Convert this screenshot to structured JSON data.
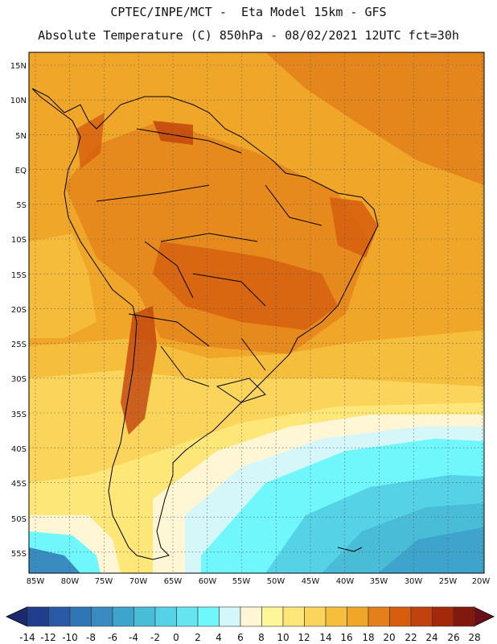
{
  "header": {
    "line1": "CPTEC/INPE/MCT -  Eta Model 15km - GFS",
    "line2": "Absolute Temperature (C) 850hPa - 08/02/2021 12UTC fct=30h"
  },
  "map": {
    "lat_labels": [
      "15N",
      "10N",
      "5N",
      "EQ",
      "5S",
      "10S",
      "15S",
      "20S",
      "25S",
      "30S",
      "35S",
      "40S",
      "45S",
      "50S",
      "55S"
    ],
    "lon_labels": [
      "85W",
      "80W",
      "75W",
      "70W",
      "65W",
      "60W",
      "55W",
      "50W",
      "45W",
      "40W",
      "35W",
      "30W",
      "25W",
      "20W"
    ],
    "gridlines": true
  },
  "colorbar": {
    "labels": [
      "-14",
      "-12",
      "-10",
      "-8",
      "-6",
      "-4",
      "-2",
      "0",
      "2",
      "4",
      "6",
      "8",
      "10",
      "12",
      "14",
      "16",
      "18",
      "20",
      "22",
      "24",
      "26",
      "28"
    ],
    "colors": [
      "#1f3e8c",
      "#2a5aa6",
      "#3176b4",
      "#3a8cc0",
      "#3fa4cc",
      "#49bcd8",
      "#56d2e6",
      "#66e4f0",
      "#6ff7fb",
      "#d6f7f9",
      "#fff6d5",
      "#fef69a",
      "#fde779",
      "#fbd55b",
      "#f5bf3d",
      "#f0a628",
      "#e3801b",
      "#d65e0e",
      "#c1420c",
      "#a3290b",
      "#7f1a0d"
    ],
    "under_color": "#1a2a6c",
    "over_color": "#6a0e1a"
  }
}
